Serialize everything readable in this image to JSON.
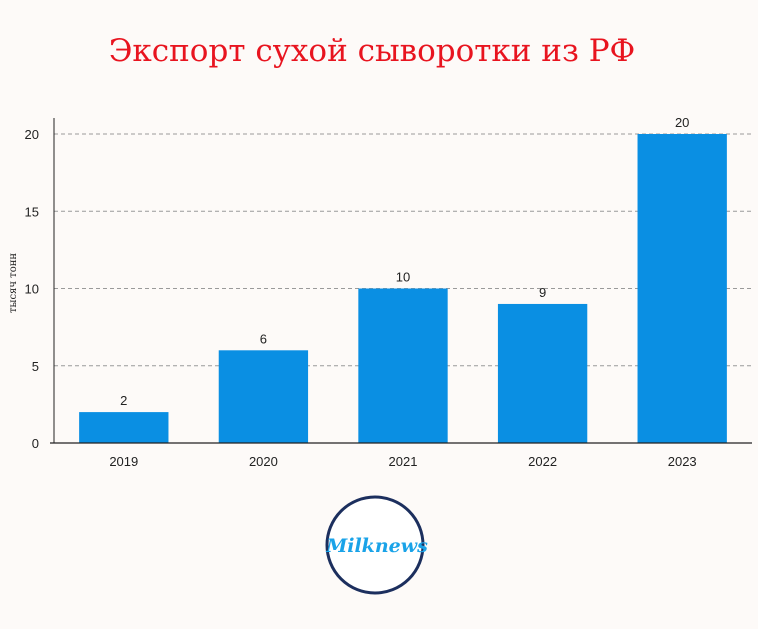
{
  "colors": {
    "title": "#e8141f",
    "bar": "#0a8fe3",
    "grid": "#9a9a9a",
    "axis": "#222222",
    "logo_ring": "#1c2f5e",
    "logo_text": "#1aa3e8"
  },
  "chart_data": {
    "type": "bar",
    "title": "Экспорт сухой сыворотки из РФ",
    "xlabel": "",
    "ylabel": "тысяч тонн",
    "categories": [
      "2019",
      "2020",
      "2021",
      "2022",
      "2023"
    ],
    "values": [
      2,
      6,
      10,
      9,
      20
    ],
    "data_labels": [
      "2",
      "6",
      "10",
      "9",
      "20"
    ],
    "ylim": [
      0,
      20
    ],
    "yticks": [
      0,
      5,
      10,
      15,
      20
    ],
    "ytick_labels": [
      "0",
      "5",
      "10",
      "15",
      "20"
    ],
    "grid": true,
    "legend": false
  },
  "logo": {
    "text": "Milknews"
  }
}
